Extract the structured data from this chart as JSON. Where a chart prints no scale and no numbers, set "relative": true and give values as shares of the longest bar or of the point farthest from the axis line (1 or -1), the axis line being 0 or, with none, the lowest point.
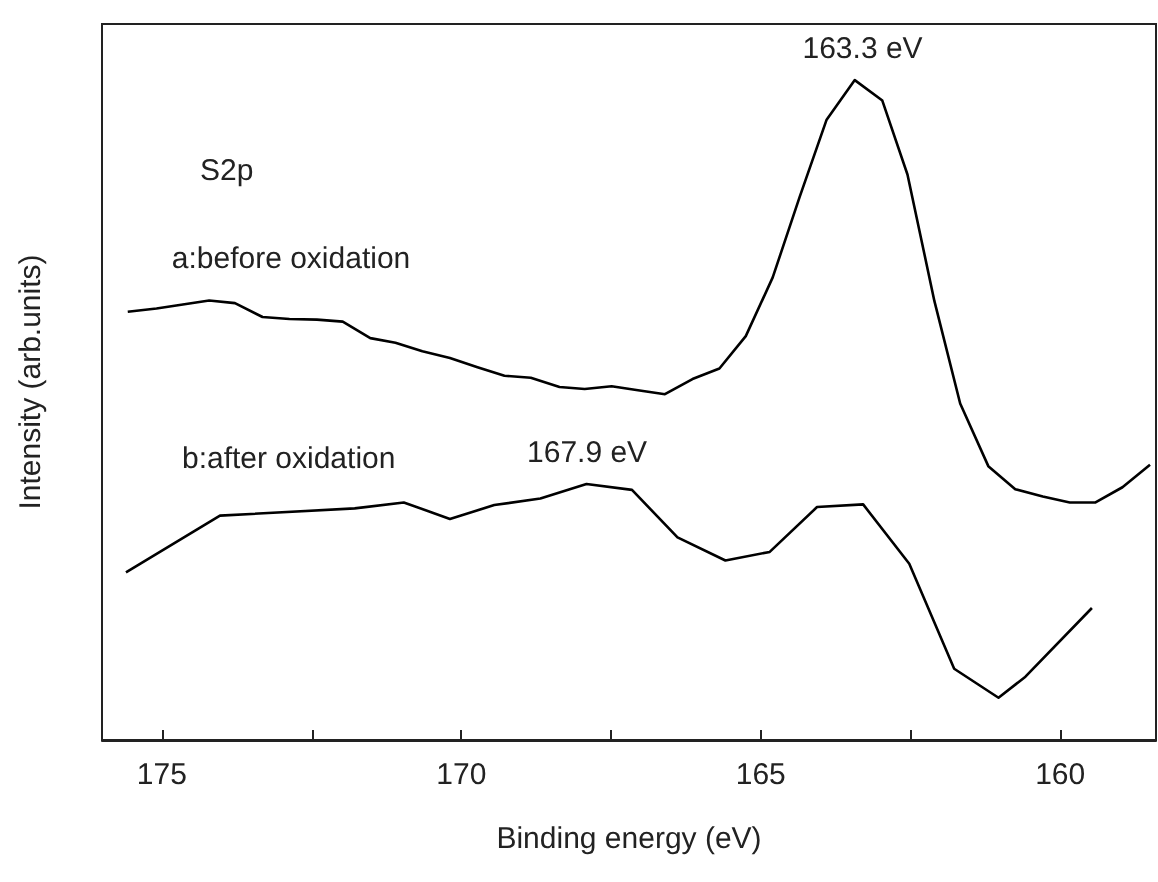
{
  "chart_data": {
    "type": "line",
    "relative": true,
    "xlabel": "Binding energy (eV)",
    "ylabel": "Intensity (arb.units)",
    "xlim": [
      176,
      158.4
    ],
    "xticks": [
      175,
      {
        "value": 172.5,
        "label": null
      },
      170,
      {
        "value": 167.5,
        "label": null
      },
      165,
      {
        "value": 162.5,
        "label": null
      },
      160
    ],
    "tick_labels": "x",
    "grid": false,
    "legend": false,
    "marker": "none",
    "line_style": "solid",
    "annotations": [
      "S2p",
      {
        "text": "163.3 eV",
        "x": 163.3,
        "y": 1.0
      },
      {
        "text": "167.9 eV",
        "x": 167.9,
        "y": 0.388
      }
    ],
    "series": [
      {
        "name": "a:before oxidation",
        "color": "#000000",
        "x": [
          175.57,
          175.09,
          174.21,
          173.78,
          173.32,
          172.87,
          172.41,
          171.98,
          171.52,
          171.1,
          170.65,
          170.19,
          169.73,
          169.28,
          168.84,
          168.36,
          167.94,
          167.49,
          167.05,
          166.6,
          166.14,
          165.69,
          165.25,
          164.8,
          164.35,
          163.9,
          163.43,
          162.97,
          162.55,
          162.1,
          161.67,
          161.2,
          160.75,
          160.29,
          159.84,
          159.41,
          158.96,
          158.5
        ],
        "values": [
          0.649,
          0.654,
          0.666,
          0.662,
          0.641,
          0.638,
          0.637,
          0.634,
          0.609,
          0.602,
          0.589,
          0.579,
          0.565,
          0.552,
          0.549,
          0.535,
          0.532,
          0.536,
          0.53,
          0.524,
          0.547,
          0.563,
          0.612,
          0.701,
          0.823,
          0.94,
          1.0,
          0.969,
          0.857,
          0.665,
          0.51,
          0.415,
          0.38,
          0.369,
          0.36,
          0.36,
          0.383,
          0.417
        ]
      },
      {
        "name": "b:after oxidation",
        "color": "#000000",
        "x": [
          175.6,
          174.03,
          171.78,
          170.96,
          170.19,
          169.45,
          168.68,
          167.91,
          167.15,
          166.39,
          165.59,
          164.85,
          164.06,
          163.29,
          162.52,
          161.77,
          161.03,
          160.58,
          159.47
        ],
        "values": [
          0.254,
          0.34,
          0.351,
          0.36,
          0.335,
          0.356,
          0.366,
          0.388,
          0.379,
          0.307,
          0.272,
          0.285,
          0.353,
          0.357,
          0.267,
          0.108,
          0.064,
          0.096,
          0.2
        ]
      }
    ]
  }
}
